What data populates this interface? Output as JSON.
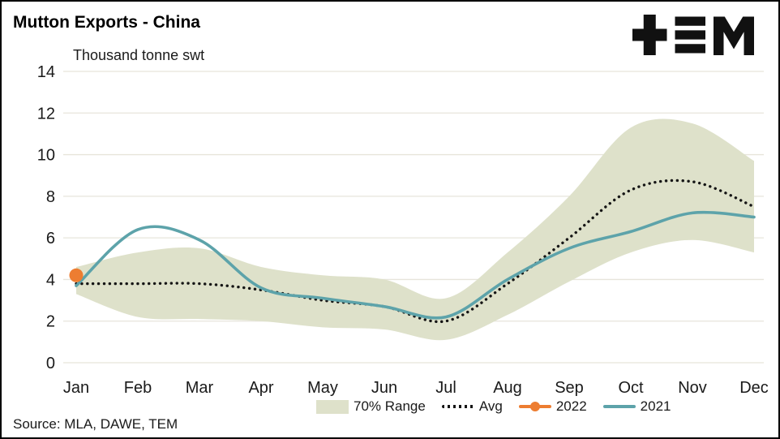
{
  "header": {
    "title": "Mutton Exports - China",
    "subtitle": "Thousand tonne swt",
    "logo": "TEM"
  },
  "footer": {
    "source": "Source: MLA, DAWE, TEM"
  },
  "chart_data": {
    "type": "line",
    "title": "Mutton Exports - China",
    "units": "Thousand tonne swt",
    "categories": [
      "Jan",
      "Feb",
      "Mar",
      "Apr",
      "May",
      "Jun",
      "Jul",
      "Aug",
      "Sep",
      "Oct",
      "Nov",
      "Dec"
    ],
    "ylim": [
      0,
      14
    ],
    "ytick_step": 2,
    "grid": true,
    "legend_position": "bottom",
    "colors": {
      "band": "#dee1ca",
      "avg": "#151515",
      "y2022": "#ed7d31",
      "y2021": "#5da3aa",
      "gridline": "#e7e5db"
    },
    "band": {
      "name": "70% Range",
      "upper": [
        4.6,
        5.3,
        5.5,
        4.6,
        4.2,
        4.0,
        3.1,
        5.3,
        8.0,
        11.3,
        11.5,
        9.7
      ],
      "lower": [
        3.3,
        2.2,
        2.1,
        2.0,
        1.7,
        1.6,
        1.1,
        2.3,
        3.9,
        5.3,
        5.9,
        5.3
      ]
    },
    "series": [
      {
        "name": "Avg",
        "style": "dotted",
        "color": "#151515",
        "values": [
          3.8,
          3.8,
          3.8,
          3.5,
          3.0,
          2.7,
          2.0,
          3.8,
          6.0,
          8.3,
          8.7,
          7.5
        ]
      },
      {
        "name": "2022",
        "style": "marker",
        "color": "#ed7d31",
        "values": [
          4.2
        ]
      },
      {
        "name": "2021",
        "style": "solid",
        "color": "#5da3aa",
        "values": [
          3.7,
          6.4,
          5.9,
          3.6,
          3.1,
          2.7,
          2.2,
          4.0,
          5.5,
          6.3,
          7.2,
          7.0
        ]
      }
    ]
  }
}
